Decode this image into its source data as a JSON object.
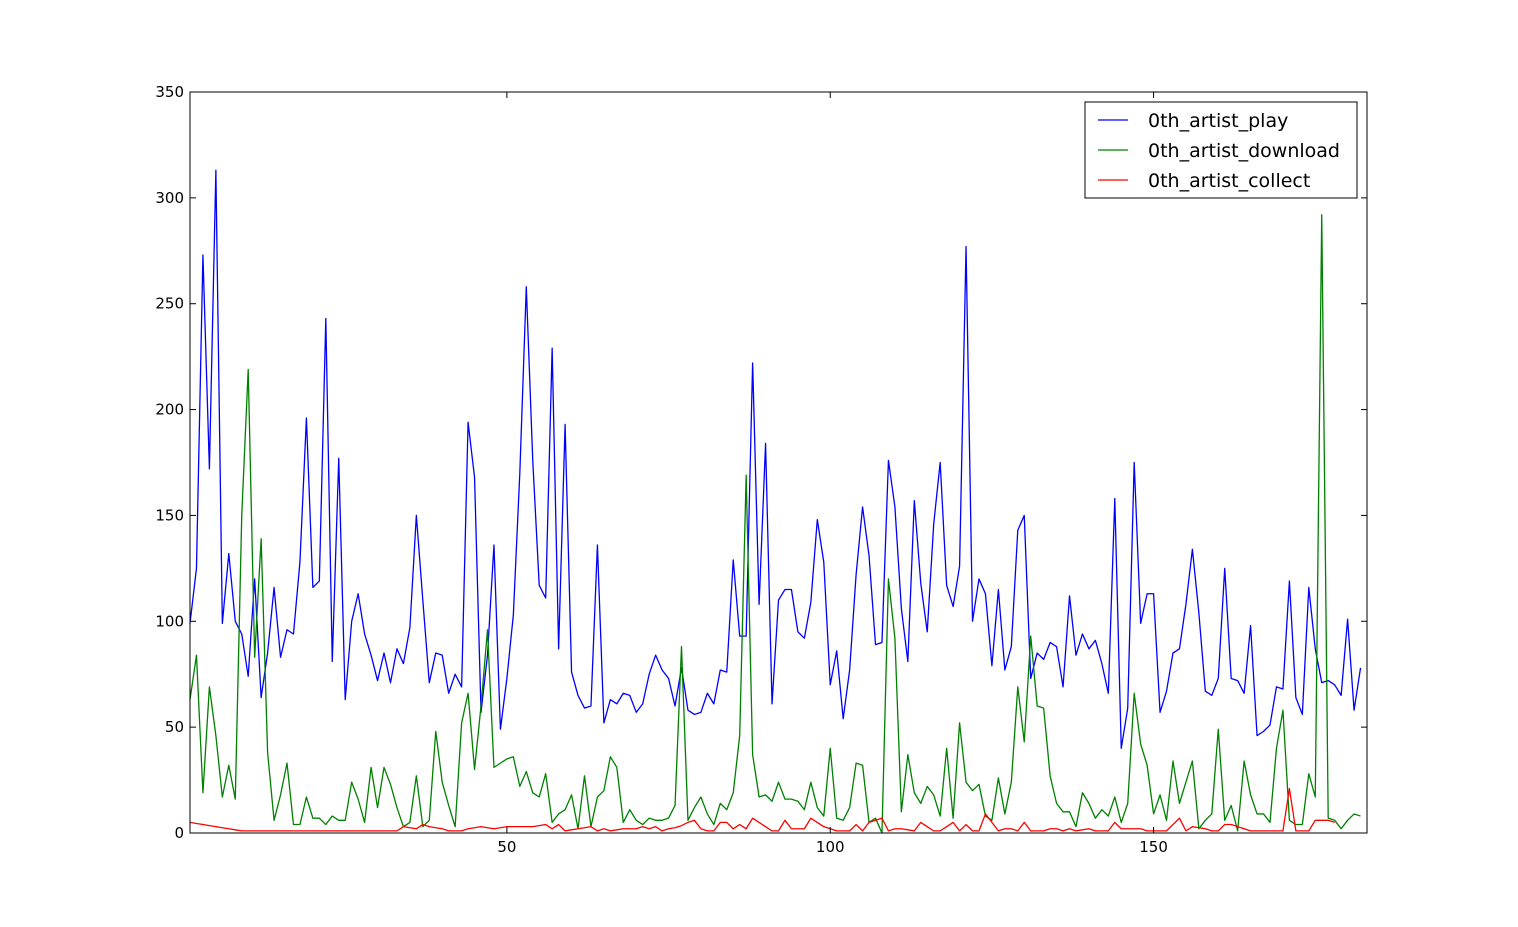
{
  "chart_data": {
    "type": "line",
    "title": "",
    "xlabel": "",
    "ylabel": "",
    "xlim": [
      1,
      183
    ],
    "ylim": [
      0,
      350
    ],
    "x_ticks": [
      50,
      100,
      150
    ],
    "y_ticks": [
      0,
      50,
      100,
      150,
      200,
      250,
      300,
      350
    ],
    "grid": false,
    "legend_position": "top-right",
    "x_start": 1,
    "series": [
      {
        "name": "0th_artist_play",
        "color": "#0000ff",
        "values": [
          99,
          125,
          273,
          172,
          313,
          99,
          132,
          100,
          94,
          74,
          120,
          64,
          85,
          116,
          83,
          96,
          94,
          128,
          196,
          116,
          119,
          243,
          81,
          177,
          63,
          100,
          113,
          94,
          84,
          72,
          85,
          71,
          87,
          80,
          97,
          150,
          110,
          71,
          85,
          84,
          66,
          75,
          69,
          194,
          168,
          57,
          84,
          136,
          49,
          73,
          103,
          170,
          258,
          176,
          117,
          111,
          229,
          87,
          193,
          76,
          65,
          59,
          60,
          136,
          52,
          63,
          61,
          66,
          65,
          57,
          61,
          75,
          84,
          77,
          73,
          60,
          78,
          58,
          56,
          57,
          66,
          61,
          77,
          76,
          129,
          93,
          93,
          222,
          108,
          184,
          61,
          110,
          115,
          115,
          95,
          92,
          109,
          148,
          128,
          70,
          86,
          54,
          77,
          122,
          154,
          131,
          89,
          90,
          176,
          154,
          106,
          81,
          157,
          118,
          95,
          146,
          175,
          117,
          107,
          126,
          277,
          100,
          120,
          113,
          79,
          115,
          77,
          88,
          143,
          150,
          73,
          85,
          82,
          90,
          88,
          69,
          112,
          84,
          94,
          87,
          91,
          80,
          66,
          158,
          40,
          59,
          175,
          99,
          113,
          113,
          57,
          67,
          85,
          87,
          108,
          134,
          104,
          67,
          65,
          73,
          125,
          73,
          72,
          66,
          98,
          46,
          48,
          51,
          69,
          68,
          119,
          64,
          56,
          116,
          87,
          71,
          72,
          70,
          65,
          101,
          58,
          78
        ]
      },
      {
        "name": "0th_artist_download",
        "color": "#008000",
        "values": [
          63,
          84,
          19,
          69,
          46,
          17,
          32,
          16,
          150,
          219,
          83,
          139,
          38,
          6,
          18,
          33,
          4,
          4,
          17,
          7,
          7,
          4,
          8,
          6,
          6,
          24,
          16,
          5,
          31,
          12,
          31,
          23,
          12,
          3,
          5,
          27,
          3,
          6,
          48,
          24,
          13,
          3,
          52,
          66,
          30,
          60,
          96,
          31,
          33,
          35,
          36,
          22,
          29,
          19,
          17,
          28,
          5,
          9,
          11,
          18,
          2,
          27,
          3,
          17,
          20,
          36,
          31,
          5,
          11,
          6,
          4,
          7,
          6,
          6,
          7,
          13,
          88,
          6,
          12,
          17,
          9,
          4,
          14,
          11,
          19,
          46,
          169,
          37,
          17,
          18,
          15,
          24,
          16,
          16,
          15,
          11,
          24,
          12,
          8,
          40,
          7,
          6,
          12,
          33,
          32,
          5,
          7,
          0,
          120,
          92,
          10,
          37,
          19,
          14,
          22,
          18,
          8,
          40,
          7,
          52,
          24,
          20,
          23,
          8,
          6,
          26,
          9,
          24,
          69,
          43,
          93,
          60,
          59,
          27,
          14,
          10,
          10,
          3,
          19,
          14,
          7,
          11,
          8,
          17,
          5,
          14,
          66,
          42,
          32,
          9,
          18,
          6,
          34,
          14,
          24,
          34,
          2,
          6,
          9,
          49,
          6,
          13,
          1,
          34,
          18,
          9,
          9,
          5,
          40,
          58,
          6,
          4,
          4,
          28,
          17,
          292,
          7,
          6,
          2,
          6,
          9,
          8
        ]
      },
      {
        "name": "0th_artist_collect",
        "color": "#ff0000",
        "values": [
          5,
          4.5,
          4,
          3.5,
          3,
          2.5,
          2,
          1.5,
          1,
          1,
          1,
          1,
          1,
          1,
          1,
          1,
          1,
          1,
          1,
          1,
          1,
          1,
          1,
          1,
          1,
          1,
          1,
          1,
          1,
          1,
          1,
          1,
          1,
          3,
          2.5,
          2,
          4,
          3,
          2.5,
          2,
          1,
          1,
          1,
          2,
          2.5,
          3,
          2.5,
          2,
          2.5,
          3,
          3,
          3,
          3,
          3,
          3.5,
          4,
          2,
          4,
          1,
          1.5,
          2,
          2.5,
          3,
          1,
          2,
          1,
          1.5,
          2,
          2,
          2,
          3,
          2,
          3,
          1,
          2,
          2.5,
          3.5,
          5,
          6,
          2,
          1,
          1,
          5,
          5,
          2,
          4,
          2,
          7,
          5,
          3,
          1,
          1,
          6,
          2,
          2,
          2,
          7,
          5,
          3,
          2,
          1,
          1,
          1,
          4,
          1,
          5,
          6,
          7,
          1,
          2,
          2,
          1.5,
          1,
          5,
          3,
          1,
          1,
          3,
          5,
          1,
          4,
          1,
          1,
          9,
          5,
          1,
          2,
          2,
          1,
          5,
          1,
          1,
          1,
          2,
          2,
          1,
          2,
          1,
          1.5,
          2,
          1,
          1,
          1,
          5,
          2,
          2,
          2,
          2,
          1,
          1,
          1,
          1,
          4,
          7,
          1,
          3,
          2.5,
          2,
          1,
          1,
          4,
          4,
          3,
          2,
          1,
          1,
          1,
          1,
          1,
          1,
          21,
          1,
          1,
          1,
          6,
          6,
          6,
          5
        ]
      }
    ]
  }
}
